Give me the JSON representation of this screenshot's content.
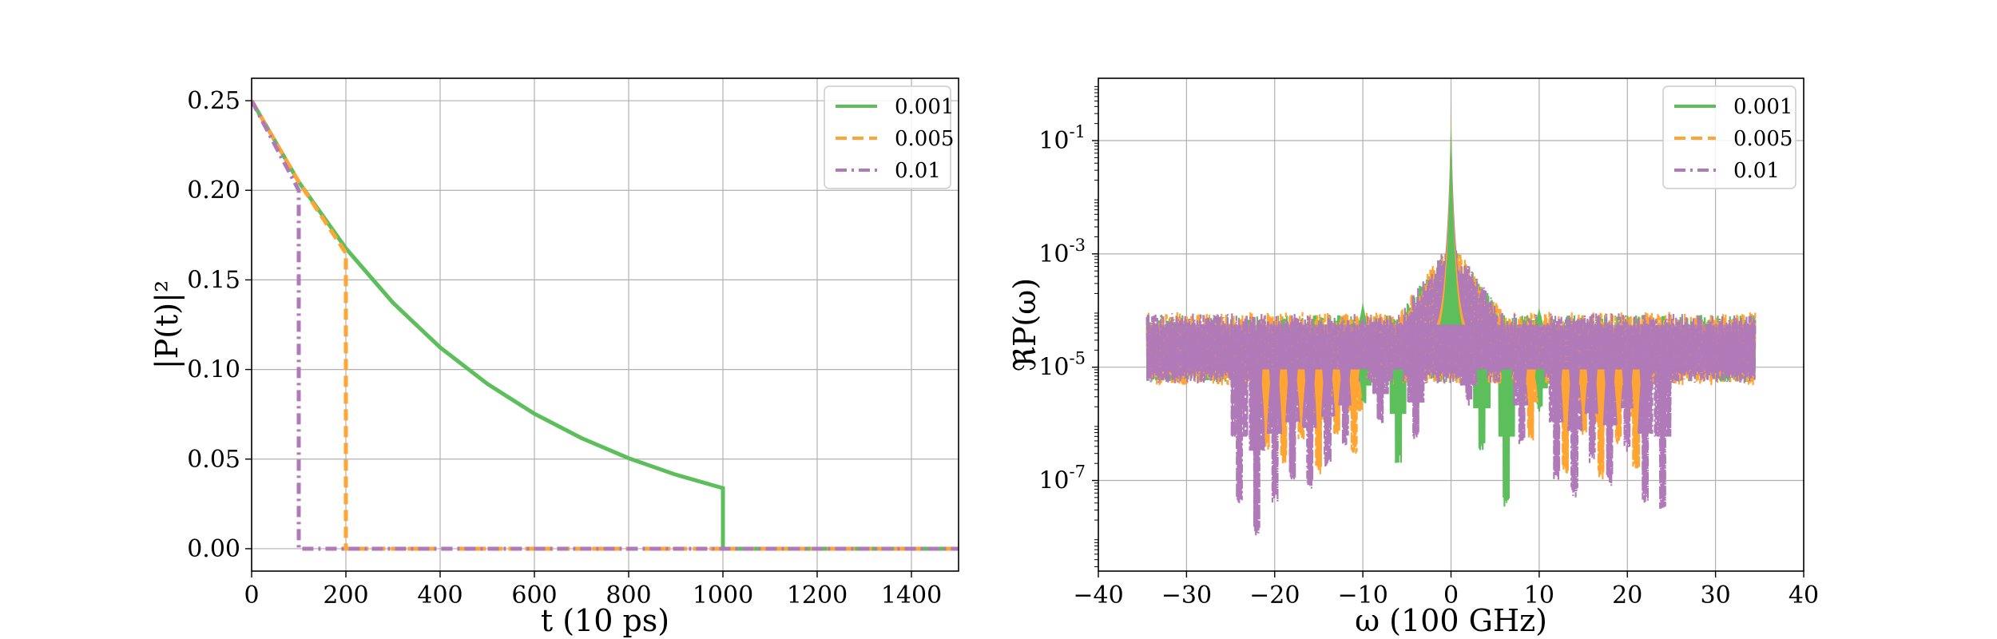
{
  "chart_data": [
    {
      "type": "line",
      "xlabel": "t (10 ps)",
      "ylabel": "|P(t)|²",
      "xlim": [
        0,
        1500
      ],
      "ylim": [
        -0.0125,
        0.2625
      ],
      "xticks": [
        0,
        200,
        400,
        600,
        800,
        1000,
        1200,
        1400
      ],
      "yticks": [
        0.0,
        0.05,
        0.1,
        0.15,
        0.2,
        0.25
      ],
      "ytick_labels": [
        "0.00",
        "0.05",
        "0.10",
        "0.15",
        "0.20",
        "0.25"
      ],
      "grid": true,
      "legend_position": "top-right",
      "series": [
        {
          "name": "0.001",
          "color": "#5cbf5c",
          "dash": "solid",
          "points": [
            [
              0,
              0.25
            ],
            [
              100,
              0.2047
            ],
            [
              200,
              0.1676
            ],
            [
              300,
              0.1372
            ],
            [
              400,
              0.1123
            ],
            [
              500,
              0.092
            ],
            [
              600,
              0.0753
            ],
            [
              700,
              0.0617
            ],
            [
              800,
              0.0505
            ],
            [
              900,
              0.0413
            ],
            [
              1000,
              0.0338
            ],
            [
              1000,
              0
            ],
            [
              1500,
              0
            ]
          ]
        },
        {
          "name": "0.005",
          "color": "#ffa533",
          "dash": "dashed",
          "points": [
            [
              0,
              0.25
            ],
            [
              100,
              0.2047
            ],
            [
              200,
              0.165
            ],
            [
              200,
              0
            ],
            [
              1500,
              0
            ]
          ]
        },
        {
          "name": "0.01",
          "color": "#b079b8",
          "dash": "dashdot",
          "points": [
            [
              0,
              0.25
            ],
            [
              100,
              0.2
            ],
            [
              100,
              0
            ],
            [
              1500,
              0
            ]
          ]
        }
      ]
    },
    {
      "type": "line",
      "xlabel": "ω (100 GHz)",
      "ylabel": "ℜP(ω)",
      "xlim": [
        -40,
        40
      ],
      "yscale": "log",
      "ylim_log10": [
        -8.6,
        0.1
      ],
      "xticks": [
        -40,
        -30,
        -20,
        -10,
        0,
        10,
        20,
        30,
        40
      ],
      "xtick_labels": [
        "−40",
        "−30",
        "−20",
        "−10",
        "0",
        "10",
        "20",
        "30",
        "40"
      ],
      "yticks": [
        {
          "base": "10",
          "exp": "-1",
          "log10": -1
        },
        {
          "base": "10",
          "exp": "-3",
          "log10": -3
        },
        {
          "base": "10",
          "exp": "-5",
          "log10": -5
        },
        {
          "base": "10",
          "exp": "-7",
          "log10": -7
        }
      ],
      "grid": true,
      "legend_position": "top-right",
      "band_log10": [
        -4.25,
        -5.05
      ],
      "band_xrange": [
        -34.5,
        34.5
      ],
      "peak_log10": -0.35,
      "series": [
        {
          "name": "0.001",
          "color": "#5cbf5c",
          "dash": "solid",
          "dips": [
            [
              -6,
              -6.6
            ],
            [
              3.5,
              -6.4
            ],
            [
              6.3,
              -7.4
            ],
            [
              -10,
              -5.6
            ],
            [
              10,
              -5.7
            ]
          ]
        },
        {
          "name": "0.005",
          "color": "#ffa533",
          "dash": "dashed",
          "dips": [
            [
              -21,
              -6.4
            ],
            [
              -19,
              -6.6
            ],
            [
              -17,
              -6.2
            ],
            [
              -15,
              -6.8
            ],
            [
              -13,
              -6.1
            ],
            [
              -11,
              -6.5
            ],
            [
              9,
              -6.2
            ],
            [
              13,
              -6.8
            ],
            [
              15,
              -6.1
            ],
            [
              17,
              -6.9
            ],
            [
              19,
              -6.3
            ],
            [
              21,
              -6.7
            ]
          ]
        },
        {
          "name": "0.01",
          "color": "#b079b8",
          "dash": "dashdot",
          "dips": [
            [
              -24,
              -7.4
            ],
            [
              -22,
              -7.9
            ],
            [
              -20,
              -7.3
            ],
            [
              -18,
              -6.9
            ],
            [
              -16,
              -7.1
            ],
            [
              -14,
              -6.7
            ],
            [
              -12,
              -6.3
            ],
            [
              -8,
              -5.9
            ],
            [
              -4,
              -6.2
            ],
            [
              2,
              -5.6
            ],
            [
              8,
              -6.3
            ],
            [
              12,
              -6.9
            ],
            [
              14,
              -7.2
            ],
            [
              16,
              -6.6
            ],
            [
              18,
              -7.0
            ],
            [
              20,
              -6.4
            ],
            [
              22,
              -7.3
            ],
            [
              24,
              -7.4
            ]
          ]
        }
      ]
    }
  ]
}
